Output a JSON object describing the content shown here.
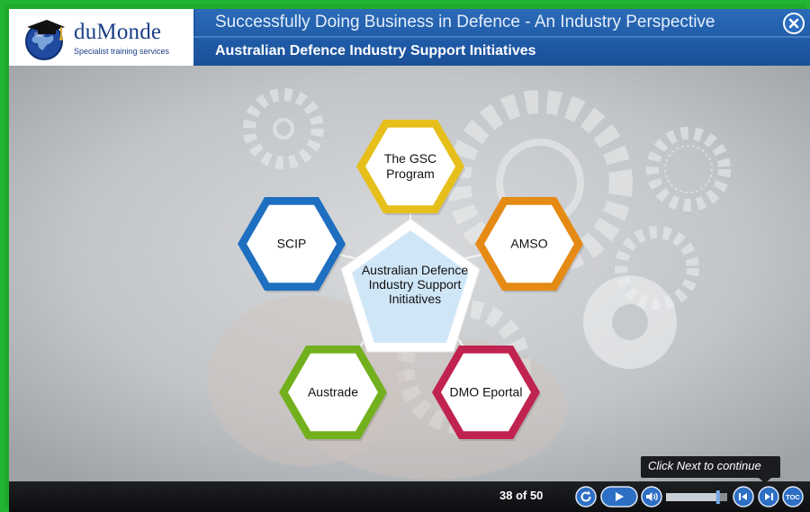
{
  "header": {
    "brand_name": "duMonde",
    "brand_tagline": "Specialist training services",
    "course_title": "Successfully Doing Business in Defence - An Industry Perspective",
    "slide_title": "Australian Defence Industry Support Initiatives"
  },
  "diagram": {
    "center": "Australian Defence Industry Support Initiatives",
    "nodes": [
      {
        "label": "The GSC Program",
        "color": "#e7bf1b"
      },
      {
        "label": "AMSO",
        "color": "#e58a14"
      },
      {
        "label": "DMO Eportal",
        "color": "#c0234f"
      },
      {
        "label": "Austrade",
        "color": "#72b01d"
      },
      {
        "label": "SCIP",
        "color": "#1f6fc0"
      }
    ]
  },
  "tooltip": {
    "text": "Click Next to continue"
  },
  "controls": {
    "page_counter": "38 of 50",
    "toc_label": "TOC",
    "audio_progress": 0.85
  },
  "colors": {
    "frame": "#22b531",
    "header": "#1f5aa6",
    "controlbar": "#141518",
    "center_fill": "#cfe6f7"
  }
}
